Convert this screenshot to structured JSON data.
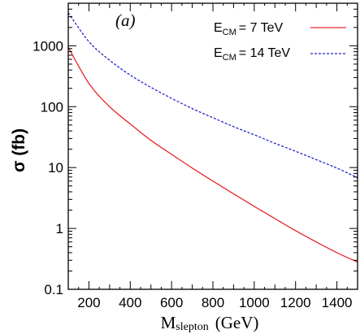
{
  "chart_data": {
    "type": "line",
    "panel_label": "(a)",
    "title": "",
    "xlabel": {
      "main": "M",
      "sub": "slepton",
      "unit": "(GeV)"
    },
    "ylabel": "σ  (fb)",
    "xlim": [
      100,
      1500
    ],
    "ylim": [
      0.1,
      5000
    ],
    "yscale": "log",
    "grid": false,
    "legend_position": "top-right",
    "x_ticks": [
      200,
      400,
      600,
      800,
      1000,
      1200,
      1400
    ],
    "x_tick_labels": [
      "200",
      "400",
      "600",
      "800",
      "1000",
      "1200",
      "1400"
    ],
    "y_ticks": [
      0.1,
      1,
      10,
      100,
      1000
    ],
    "y_tick_labels": [
      "0.1",
      "1",
      "10",
      "100",
      "1000"
    ],
    "x": [
      100,
      200,
      300,
      400,
      500,
      600,
      700,
      800,
      900,
      1000,
      1100,
      1200,
      1300,
      1400,
      1500
    ],
    "series": [
      {
        "legend_main": "E",
        "legend_sub": "CM",
        "legend_value": "=   7 TeV",
        "color": "#e8262a",
        "dash": "solid",
        "values": [
          950,
          240,
          100,
          52,
          28,
          16.5,
          9.8,
          6.0,
          3.7,
          2.3,
          1.45,
          0.92,
          0.6,
          0.4,
          0.28
        ]
      },
      {
        "legend_main": "E",
        "legend_sub": "CM",
        "legend_value": "= 14 TeV",
        "color": "#1f25c9",
        "dash": "dotted",
        "values": [
          3500,
          1170,
          580,
          330,
          208,
          137,
          93,
          66,
          47,
          34.5,
          25,
          18.5,
          13.5,
          9.8,
          6.8
        ]
      }
    ]
  }
}
